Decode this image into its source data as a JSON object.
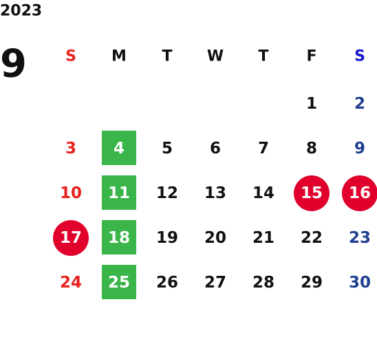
{
  "calendar": {
    "year": "2023",
    "month": "9",
    "weekdays": [
      "S",
      "M",
      "T",
      "W",
      "T",
      "F",
      "S"
    ],
    "weeks": [
      [
        null,
        null,
        null,
        null,
        null,
        1,
        2
      ],
      [
        3,
        4,
        5,
        6,
        7,
        8,
        9
      ],
      [
        10,
        11,
        12,
        13,
        14,
        15,
        16
      ],
      [
        17,
        18,
        19,
        20,
        21,
        22,
        23
      ],
      [
        24,
        25,
        26,
        27,
        28,
        29,
        30
      ]
    ],
    "boxed_days": [
      4,
      11,
      18,
      25
    ],
    "boxed_color": "#3ab54a",
    "circled_days": [
      15,
      16,
      17
    ],
    "circled_color": "#e0002b",
    "sunday_header_color": "#e8211d",
    "saturday_header_color": "#1414d2",
    "sunday_color": "#e8211d",
    "saturday_color": "#1f3f8f",
    "weekday_color": "#111111"
  }
}
